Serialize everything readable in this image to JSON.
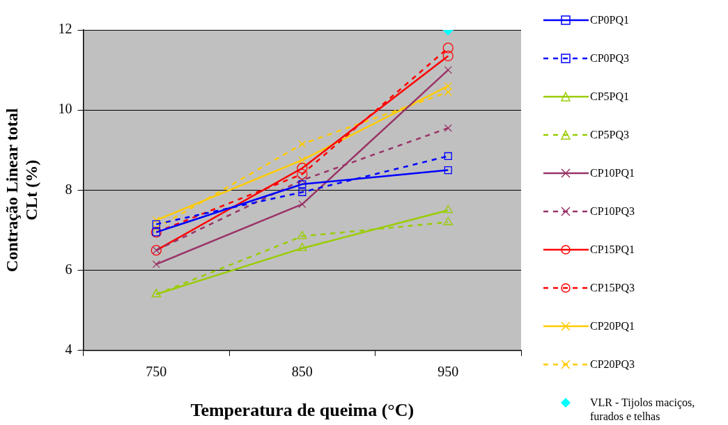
{
  "chart_data": {
    "type": "line",
    "xlabel": "Temperatura de queima (°C)",
    "ylabel": "Contração Linear total CLt (%)",
    "categories": [
      "750",
      "850",
      "950"
    ],
    "ylim": [
      4,
      12
    ],
    "yticks": [
      4,
      6,
      8,
      10,
      12
    ],
    "grid": "y",
    "legend": "right",
    "series": [
      {
        "name": "CP0PQ1",
        "color": "#0000ff",
        "marker": "square",
        "line_style": "solid",
        "values": [
          6.95,
          8.15,
          8.5
        ]
      },
      {
        "name": "CP0PQ3",
        "color": "#0000ff",
        "marker": "square",
        "line_style": "dashed",
        "values": [
          7.15,
          7.95,
          8.85
        ]
      },
      {
        "name": "CP5PQ1",
        "color": "#99cc00",
        "marker": "triangle",
        "line_style": "solid",
        "values": [
          5.4,
          6.55,
          7.5
        ]
      },
      {
        "name": "CP5PQ3",
        "color": "#99cc00",
        "marker": "triangle",
        "line_style": "dashed",
        "values": [
          5.4,
          6.85,
          7.2
        ]
      },
      {
        "name": "CP10PQ1",
        "color": "#993366",
        "marker": "cross",
        "line_style": "solid",
        "values": [
          6.15,
          7.65,
          11.0
        ]
      },
      {
        "name": "CP10PQ3",
        "color": "#993366",
        "marker": "cross",
        "line_style": "dashed",
        "values": [
          6.5,
          8.25,
          9.55
        ]
      },
      {
        "name": "CP15PQ1",
        "color": "#ff0000",
        "marker": "circle",
        "line_style": "solid",
        "values": [
          6.5,
          8.55,
          11.35
        ]
      },
      {
        "name": "CP15PQ3",
        "color": "#ff0000",
        "marker": "circle",
        "line_style": "dashed",
        "values": [
          6.95,
          8.4,
          11.55
        ]
      },
      {
        "name": "CP20PQ1",
        "color": "#ffcc00",
        "marker": "cross",
        "line_style": "solid",
        "values": [
          7.25,
          8.75,
          10.6
        ]
      },
      {
        "name": "CP20PQ3",
        "color": "#ffcc00",
        "marker": "cross",
        "line_style": "dashed",
        "values": [
          7.05,
          9.15,
          10.45
        ]
      },
      {
        "name": "VLR - Tijolos maciços, furados e telhas",
        "type": "scatter",
        "color": "#00ffff",
        "marker": "diamond",
        "values": [
          null,
          null,
          12
        ]
      }
    ]
  }
}
